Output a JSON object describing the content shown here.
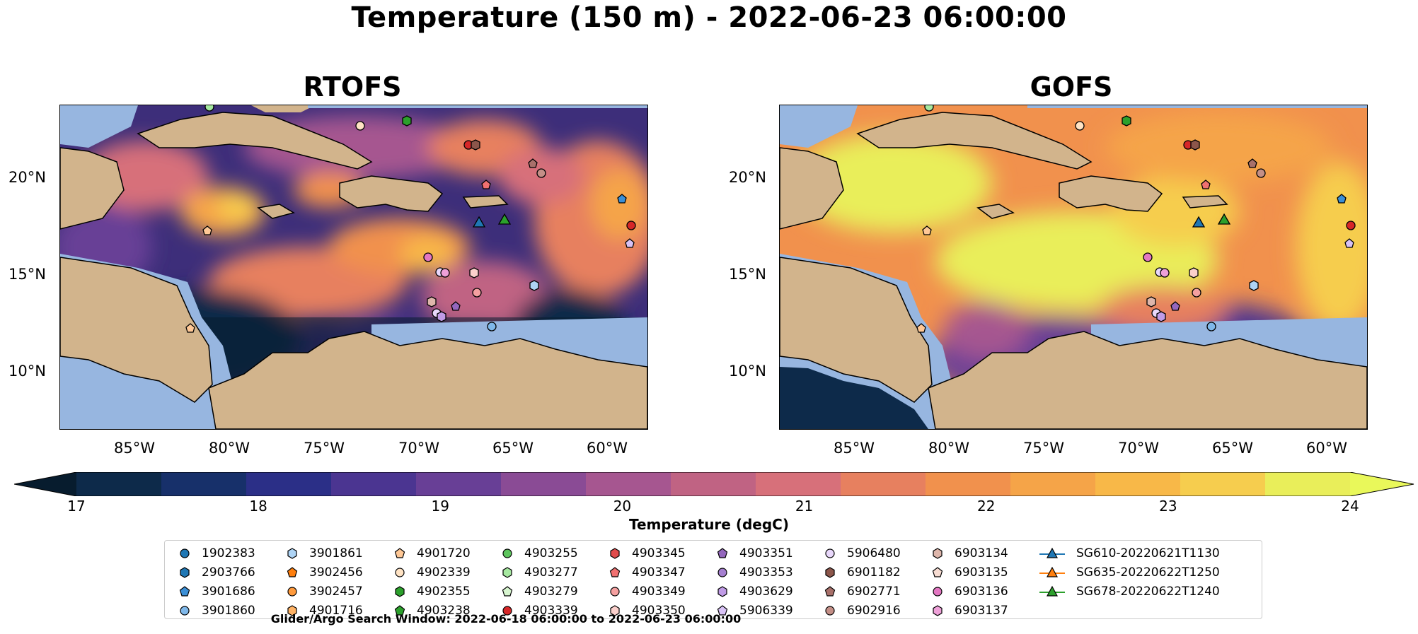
{
  "title": "Temperature (150 m) - 2022-06-23 06:00:00",
  "panels": [
    {
      "title": "RTOFS"
    },
    {
      "title": "GOFS"
    }
  ],
  "lat_labels": [
    "20°N",
    "15°N",
    "10°N"
  ],
  "lon_labels": [
    "85°W",
    "80°W",
    "75°W",
    "70°W",
    "65°W",
    "60°W"
  ],
  "colorbar": {
    "label": "Temperature (degC)",
    "ticks": [
      "17",
      "18",
      "19",
      "20",
      "21",
      "22",
      "23",
      "24"
    ],
    "colors": [
      "#0d2a4a",
      "#17306a",
      "#2b2f87",
      "#4b3591",
      "#683f96",
      "#8a4b95",
      "#a65690",
      "#c06383",
      "#d7707a",
      "#e7805f",
      "#f1914d",
      "#f5a448",
      "#f8b848",
      "#f6cd4e",
      "#e9ee5a"
    ],
    "under_color": "#071c2e",
    "over_color": "#e9f85a"
  },
  "legend": {
    "items": [
      {
        "label": "1902383",
        "marker": "circle",
        "color": "#1f77b4"
      },
      {
        "label": "2903766",
        "marker": "hexagon",
        "color": "#1f77b4"
      },
      {
        "label": "3901686",
        "marker": "pentagon",
        "color": "#3b8fd6"
      },
      {
        "label": "3901860",
        "marker": "circle",
        "color": "#7fb8ea"
      },
      {
        "label": "3901861",
        "marker": "hexagon",
        "color": "#aed4f5"
      },
      {
        "label": "3902456",
        "marker": "pentagon",
        "color": "#ff7f0e"
      },
      {
        "label": "3902457",
        "marker": "circle",
        "color": "#ff9a3c"
      },
      {
        "label": "4901716",
        "marker": "hexagon",
        "color": "#ffb366"
      },
      {
        "label": "4901720",
        "marker": "pentagon",
        "color": "#ffc896"
      },
      {
        "label": "4902339",
        "marker": "circle",
        "color": "#ffe3c4"
      },
      {
        "label": "4902355",
        "marker": "hexagon",
        "color": "#2ca02c"
      },
      {
        "label": "4903238",
        "marker": "pentagon",
        "color": "#2ca02c"
      },
      {
        "label": "4903255",
        "marker": "circle",
        "color": "#5cc45c"
      },
      {
        "label": "4903277",
        "marker": "hexagon",
        "color": "#a6e8a0"
      },
      {
        "label": "4903279",
        "marker": "pentagon",
        "color": "#d7f5cf"
      },
      {
        "label": "4903339",
        "marker": "circle",
        "color": "#d62728"
      },
      {
        "label": "4903345",
        "marker": "hexagon",
        "color": "#e04a4a"
      },
      {
        "label": "4903347",
        "marker": "pentagon",
        "color": "#f07070"
      },
      {
        "label": "4903349",
        "marker": "circle",
        "color": "#f5a0a0"
      },
      {
        "label": "4903350",
        "marker": "hexagon",
        "color": "#fbd0cc"
      },
      {
        "label": "4903351",
        "marker": "pentagon",
        "color": "#9467bd"
      },
      {
        "label": "4903353",
        "marker": "circle",
        "color": "#a57fd0"
      },
      {
        "label": "4903629",
        "marker": "hexagon",
        "color": "#c09be6"
      },
      {
        "label": "5906339",
        "marker": "pentagon",
        "color": "#d8c2f5"
      },
      {
        "label": "5906480",
        "marker": "circle",
        "color": "#e9d8fb"
      },
      {
        "label": "6901182",
        "marker": "hexagon",
        "color": "#8c564b"
      },
      {
        "label": "6902771",
        "marker": "pentagon",
        "color": "#a8706a"
      },
      {
        "label": "6902916",
        "marker": "circle",
        "color": "#c48f87"
      },
      {
        "label": "6903134",
        "marker": "hexagon",
        "color": "#deb6ab"
      },
      {
        "label": "6903135",
        "marker": "pentagon",
        "color": "#f7dcd2"
      },
      {
        "label": "6903136",
        "marker": "circle",
        "color": "#e377c2"
      },
      {
        "label": "6903137",
        "marker": "hexagon",
        "color": "#eea0d8"
      },
      {
        "label": "SG610-20220621T1130",
        "marker": "triangle-line",
        "color": "#1f77b4"
      },
      {
        "label": "SG635-20220622T1250",
        "marker": "triangle-line",
        "color": "#ff7f0e"
      },
      {
        "label": "SG678-20220622T1240",
        "marker": "triangle-line",
        "color": "#2ca02c"
      }
    ]
  },
  "footer": "Glider/Argo Search Window: 2022-06-18 06:00:00 to 2022-06-23 06:00:00",
  "map_colors": {
    "land": "#d2b48c",
    "shelf": "#97b6e0"
  }
}
